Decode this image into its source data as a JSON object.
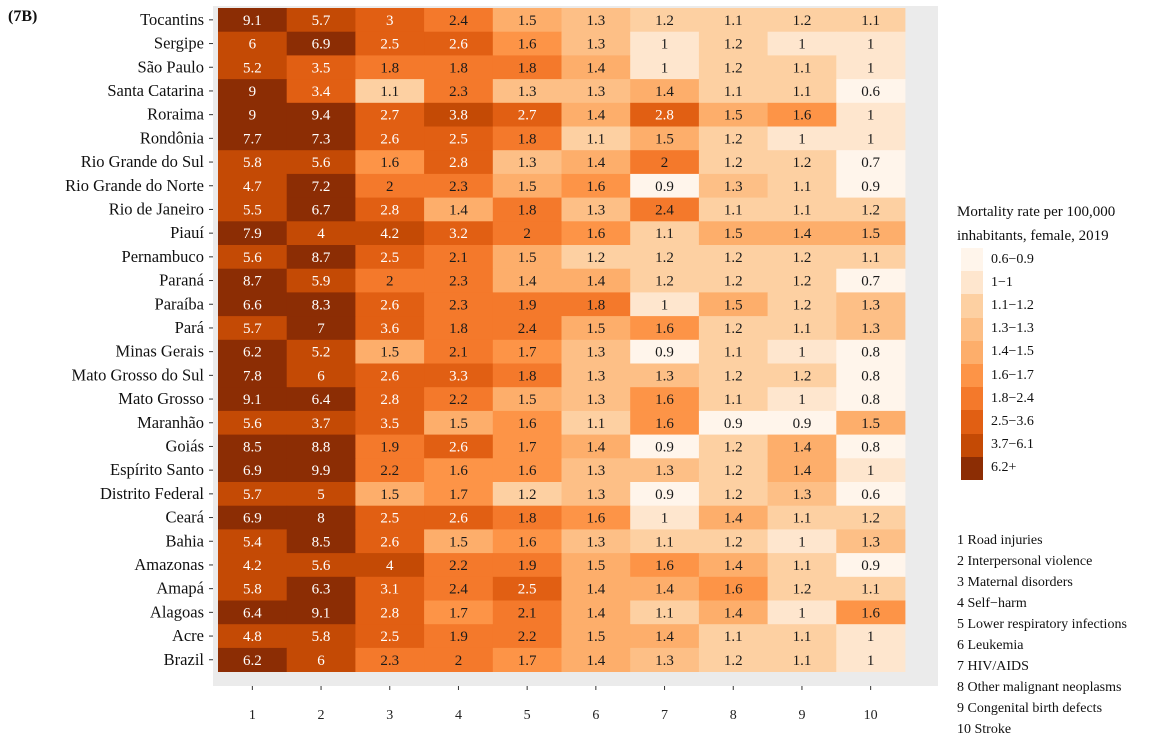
{
  "panel_label": "(7B)",
  "chart_data": {
    "type": "heatmap",
    "rows": [
      "Tocantins",
      "Sergipe",
      "São Paulo",
      "Santa Catarina",
      "Roraima",
      "Rondônia",
      "Rio Grande do Sul",
      "Rio Grande do Norte",
      "Rio de Janeiro",
      "Piauí",
      "Pernambuco",
      "Paraná",
      "Paraíba",
      "Pará",
      "Minas Gerais",
      "Mato Grosso do Sul",
      "Mato Grosso",
      "Maranhão",
      "Goiás",
      "Espírito Santo",
      "Distrito Federal",
      "Ceará",
      "Bahia",
      "Amazonas",
      "Amapá",
      "Alagoas",
      "Acre",
      "Brazil"
    ],
    "columns": [
      "1",
      "2",
      "3",
      "4",
      "5",
      "6",
      "7",
      "8",
      "9",
      "10"
    ],
    "values": [
      [
        9.1,
        5.7,
        3,
        2.4,
        1.5,
        1.3,
        1.2,
        1.1,
        1.2,
        1.1
      ],
      [
        6,
        6.9,
        2.5,
        2.6,
        1.6,
        1.3,
        1,
        1.2,
        1,
        1
      ],
      [
        5.2,
        3.5,
        1.8,
        1.8,
        1.8,
        1.4,
        1,
        1.2,
        1.1,
        1
      ],
      [
        9,
        3.4,
        1.1,
        2.3,
        1.3,
        1.3,
        1.4,
        1.1,
        1.1,
        0.6
      ],
      [
        9,
        9.4,
        2.7,
        3.8,
        2.7,
        1.4,
        2.8,
        1.5,
        1.6,
        1
      ],
      [
        7.7,
        7.3,
        2.6,
        2.5,
        1.8,
        1.1,
        1.5,
        1.2,
        1,
        1
      ],
      [
        5.8,
        5.6,
        1.6,
        2.8,
        1.3,
        1.4,
        2,
        1.2,
        1.2,
        0.7
      ],
      [
        4.7,
        7.2,
        2,
        2.3,
        1.5,
        1.6,
        0.9,
        1.3,
        1.1,
        0.9
      ],
      [
        5.5,
        6.7,
        2.8,
        1.4,
        1.8,
        1.3,
        2.4,
        1.1,
        1.1,
        1.2
      ],
      [
        7.9,
        4,
        4.2,
        3.2,
        2,
        1.6,
        1.1,
        1.5,
        1.4,
        1.5
      ],
      [
        5.6,
        8.7,
        2.5,
        2.1,
        1.5,
        1.2,
        1.2,
        1.2,
        1.2,
        1.1
      ],
      [
        8.7,
        5.9,
        2,
        2.3,
        1.4,
        1.4,
        1.2,
        1.2,
        1.2,
        0.7
      ],
      [
        6.6,
        8.3,
        2.6,
        2.3,
        1.9,
        1.8,
        1,
        1.5,
        1.2,
        1.3
      ],
      [
        5.7,
        7,
        3.6,
        1.8,
        2.4,
        1.5,
        1.6,
        1.2,
        1.1,
        1.3
      ],
      [
        6.2,
        5.2,
        1.5,
        2.1,
        1.7,
        1.3,
        0.9,
        1.1,
        1,
        0.8
      ],
      [
        7.8,
        6,
        2.6,
        3.3,
        1.8,
        1.3,
        1.3,
        1.2,
        1.2,
        0.8
      ],
      [
        9.1,
        6.4,
        2.8,
        2.2,
        1.5,
        1.3,
        1.6,
        1.1,
        1,
        0.8
      ],
      [
        5.6,
        3.7,
        3.5,
        1.5,
        1.6,
        1.1,
        1.6,
        0.9,
        0.9,
        1.5
      ],
      [
        8.5,
        8.8,
        1.9,
        2.6,
        1.7,
        1.4,
        0.9,
        1.2,
        1.4,
        0.8
      ],
      [
        6.9,
        9.9,
        2.2,
        1.6,
        1.6,
        1.3,
        1.3,
        1.2,
        1.4,
        1
      ],
      [
        5.7,
        5,
        1.5,
        1.7,
        1.2,
        1.3,
        0.9,
        1.2,
        1.3,
        0.6
      ],
      [
        6.9,
        8,
        2.5,
        2.6,
        1.8,
        1.6,
        1,
        1.4,
        1.1,
        1.2
      ],
      [
        5.4,
        8.5,
        2.6,
        1.5,
        1.6,
        1.3,
        1.1,
        1.2,
        1,
        1.3
      ],
      [
        4.2,
        5.6,
        4,
        2.2,
        1.9,
        1.5,
        1.6,
        1.4,
        1.1,
        0.9
      ],
      [
        5.8,
        6.3,
        3.1,
        2.4,
        2.5,
        1.4,
        1.4,
        1.6,
        1.2,
        1.1
      ],
      [
        6.4,
        9.1,
        2.8,
        1.7,
        2.1,
        1.4,
        1.1,
        1.4,
        1,
        1.6
      ],
      [
        4.8,
        5.8,
        2.5,
        1.9,
        2.2,
        1.5,
        1.4,
        1.1,
        1.1,
        1
      ],
      [
        6.2,
        6,
        2.3,
        2,
        1.7,
        1.4,
        1.3,
        1.2,
        1.1,
        1
      ]
    ],
    "legend_title_line1": "Mortality rate per 100,000",
    "legend_title_line2": "inhabitants, female, 2019",
    "bins": [
      {
        "label": "0.6−0.9",
        "min": 0,
        "max": 0.95,
        "color": "#fff5eb"
      },
      {
        "label": "1−1",
        "min": 0.95,
        "max": 1.05,
        "color": "#fee6ce"
      },
      {
        "label": "1.1−1.2",
        "min": 1.05,
        "max": 1.25,
        "color": "#fdd0a2"
      },
      {
        "label": "1.3−1.3",
        "min": 1.25,
        "max": 1.35,
        "color": "#fdbf86"
      },
      {
        "label": "1.4−1.5",
        "min": 1.35,
        "max": 1.55,
        "color": "#fdae6b"
      },
      {
        "label": "1.6−1.7",
        "min": 1.55,
        "max": 1.75,
        "color": "#fd9447"
      },
      {
        "label": "1.8−2.4",
        "min": 1.75,
        "max": 2.45,
        "color": "#f4792b"
      },
      {
        "label": "2.5−3.6",
        "min": 2.45,
        "max": 3.65,
        "color": "#e15f13"
      },
      {
        "label": "3.7−6.1",
        "min": 3.65,
        "max": 6.15,
        "color": "#c44a05"
      },
      {
        "label": "6.2+",
        "min": 6.15,
        "max": 100,
        "color": "#8c2d04"
      }
    ],
    "causes": [
      "1 Road injuries",
      "2 Interpersonal violence",
      "3 Maternal disorders",
      "4 Self−harm",
      "5 Lower respiratory infections",
      "6 Leukemia",
      "7 HIV/AIDS",
      "8 Other malignant neoplasms",
      "9 Congenital birth defects",
      "10 Stroke"
    ],
    "grid": false,
    "panel_background": "#ebebeb"
  }
}
